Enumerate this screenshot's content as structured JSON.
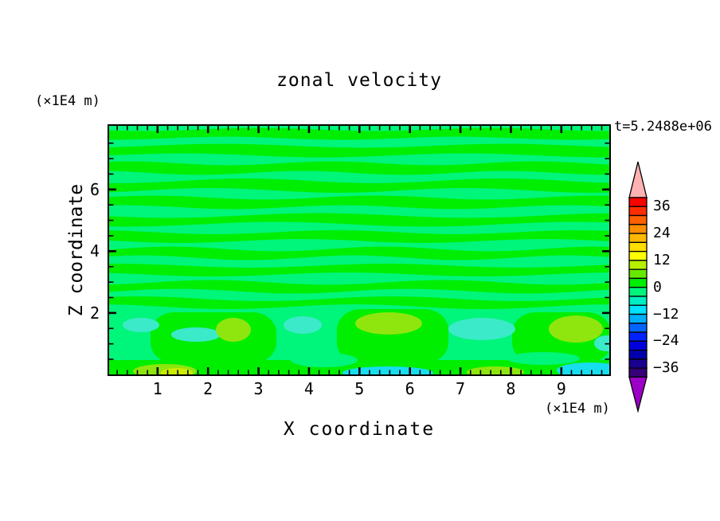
{
  "header": {
    "title": "zonal velocity",
    "timestamp": "t=5.2488e+06"
  },
  "axes": {
    "x": {
      "label": "X coordinate",
      "units": "(×1E4 m)",
      "majors": [
        1,
        2,
        3,
        4,
        5,
        6,
        7,
        8,
        9
      ],
      "minor_step": 0.2,
      "lim": [
        0.04,
        9.95
      ]
    },
    "y": {
      "label": "Z coordinate",
      "units": "(×1E4 m)",
      "majors": [
        2,
        4,
        6
      ],
      "minor_step": 0.5,
      "lim": [
        0.01,
        8.06
      ]
    }
  },
  "chart_data": {
    "type": "heatmap",
    "title": "zonal velocity",
    "xlabel": "X coordinate",
    "ylabel": "Z coordinate",
    "x_units": "(×1E4 m)",
    "y_units": "(×1E4 m)",
    "time_annotation": "t=5.2488e+06",
    "xlim": [
      0.04,
      9.95
    ],
    "ylim": [
      0.01,
      8.06
    ],
    "x_ticks": [
      1,
      2,
      3,
      4,
      5,
      6,
      7,
      8,
      9
    ],
    "y_ticks": [
      2,
      4,
      6
    ],
    "grid": false,
    "contour_interval": 4,
    "value_range_displayed": [
      -40,
      40
    ],
    "field_description": "Filled contour field of zonal velocity u(x,z): interior dominated by alternating near-zero horizontal bands (values in the 0 to 4 and -4 to 0 bins); stronger anomalies of roughly ±4 to ±12 appear as blobs near the bottom boundary (z < 2).",
    "colorbar": {
      "tick_labels": [
        "36",
        "24",
        "12",
        "0",
        "−12",
        "−24",
        "−36"
      ],
      "label_boundary_index": [
        1,
        4,
        7,
        10,
        13,
        16,
        19
      ],
      "cell_value_span": 4,
      "cell_colors": [
        "#F60400",
        "#FF2E00",
        "#FF6000",
        "#FF8E00",
        "#FFB800",
        "#FFDE00",
        "#FFFF00",
        "#B6F000",
        "#66E800",
        "#00EE00",
        "#00F57B",
        "#00EEC2",
        "#00E2FE",
        "#00AEFF",
        "#0066FF",
        "#0022FF",
        "#0000DE",
        "#0000AC",
        "#1A008E",
        "#360078"
      ],
      "over_color": "#FFB2B2",
      "under_color": "#9C00C6"
    },
    "field": {
      "colors": {
        "mint": "#00F57B",
        "green": "#00EE00",
        "cyan": "#3BEAC8",
        "yg": "#8EE60E",
        "yellow": "#CCEC00",
        "cyan2": "#16DEEE"
      },
      "background": "mint",
      "stripe_color": "green",
      "stripes": [
        [
          10,
          11,
          -6,
          634,
          2.0,
          0.5,
          2.2
        ],
        [
          31,
          12,
          -6,
          634,
          2.5,
          2.1,
          1.8
        ],
        [
          53,
          12,
          -6,
          634,
          2.5,
          4.0,
          2.5
        ],
        [
          75,
          12,
          -6,
          634,
          3.0,
          1.2,
          2.0
        ],
        [
          96,
          12,
          -6,
          634,
          2.5,
          3.3,
          2.3
        ],
        [
          118,
          11,
          -6,
          634,
          3.0,
          0.2,
          1.7
        ],
        [
          139,
          11,
          -6,
          634,
          2.5,
          5.0,
          2.1
        ],
        [
          160,
          11,
          -6,
          634,
          3.0,
          2.7,
          2.4
        ],
        [
          181,
          11,
          -6,
          634,
          2.5,
          4.4,
          1.9
        ],
        [
          202,
          11,
          -6,
          634,
          3.0,
          1.8,
          2.2
        ],
        [
          222,
          10,
          -6,
          634,
          3.0,
          3.9,
          2.0
        ]
      ],
      "green_blobs": [
        [
          52,
          234,
          158,
          64
        ],
        [
          286,
          230,
          140,
          68
        ],
        [
          506,
          234,
          124,
          64
        ]
      ],
      "bottom_band": [
        -6,
        294,
        640,
        24
      ],
      "ellipses": [
        [
          270,
          294,
          42,
          9,
          "mint"
        ],
        [
          545,
          292,
          46,
          8,
          "mint"
        ],
        [
          40,
          250,
          23,
          9,
          "cyan"
        ],
        [
          109,
          262,
          31,
          9,
          "cyan"
        ],
        [
          243,
          250,
          24,
          11,
          "cyan"
        ],
        [
          468,
          255,
          42,
          14,
          "cyan"
        ],
        [
          625,
          273,
          16,
          10,
          "cyan"
        ],
        [
          156,
          256,
          22,
          15,
          "yg"
        ],
        [
          351,
          248,
          42,
          14,
          "yg"
        ],
        [
          586,
          255,
          34,
          17,
          "yg"
        ],
        [
          70,
          308,
          40,
          9,
          "yg"
        ],
        [
          85,
          310,
          20,
          6,
          "yellow"
        ],
        [
          350,
          310,
          57,
          8,
          "cyan2"
        ],
        [
          485,
          309,
          36,
          7,
          "yg"
        ],
        [
          604,
          307,
          42,
          10,
          "cyan2"
        ]
      ]
    }
  }
}
